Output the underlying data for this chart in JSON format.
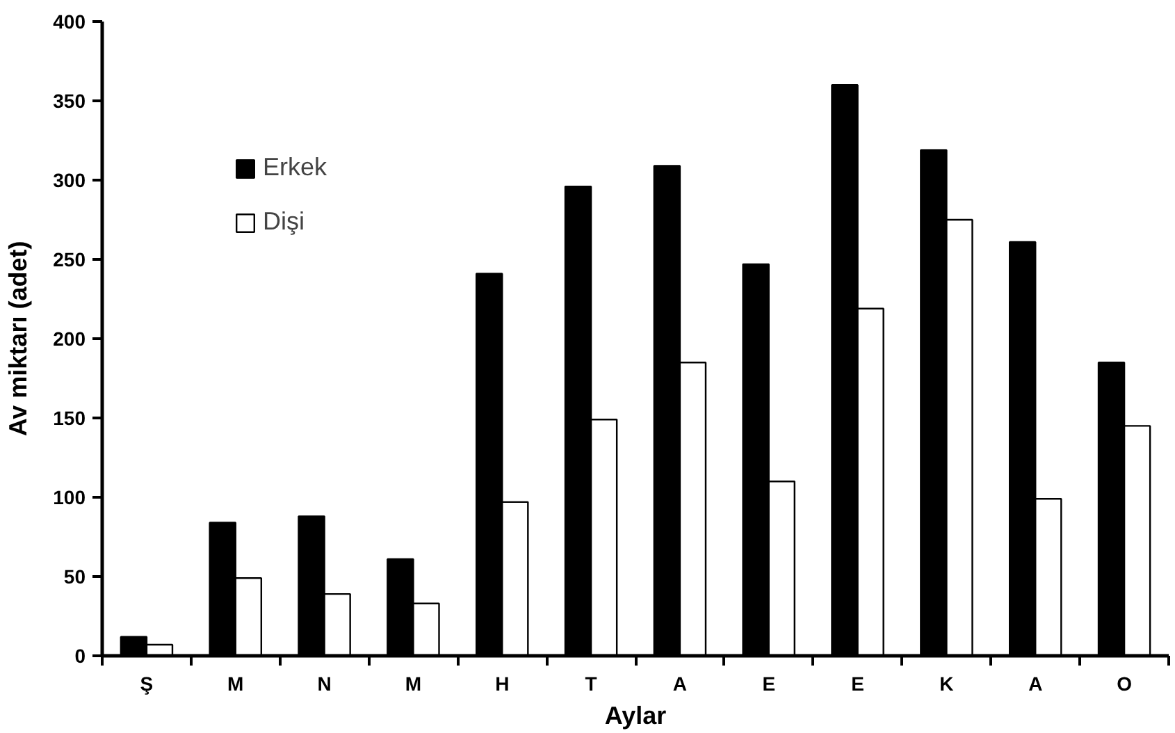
{
  "chart_data": {
    "type": "bar",
    "xlabel": "Aylar",
    "ylabel": "Av miktarı (adet)",
    "categories": [
      "Ş",
      "M",
      "N",
      "M",
      "H",
      "T",
      "A",
      "E",
      "E",
      "K",
      "A",
      "O"
    ],
    "series": [
      {
        "name": "Erkek",
        "color": "#000000",
        "values": [
          12,
          84,
          88,
          61,
          241,
          296,
          309,
          247,
          360,
          319,
          261,
          185
        ]
      },
      {
        "name": "Dişi",
        "color": "#ffffff",
        "values": [
          7,
          49,
          39,
          33,
          97,
          149,
          185,
          110,
          219,
          275,
          99,
          145
        ]
      }
    ],
    "ylim": [
      0,
      400
    ],
    "yticks": [
      0,
      50,
      100,
      150,
      200,
      250,
      300,
      350,
      400
    ],
    "grid": false,
    "legend": "top left"
  }
}
